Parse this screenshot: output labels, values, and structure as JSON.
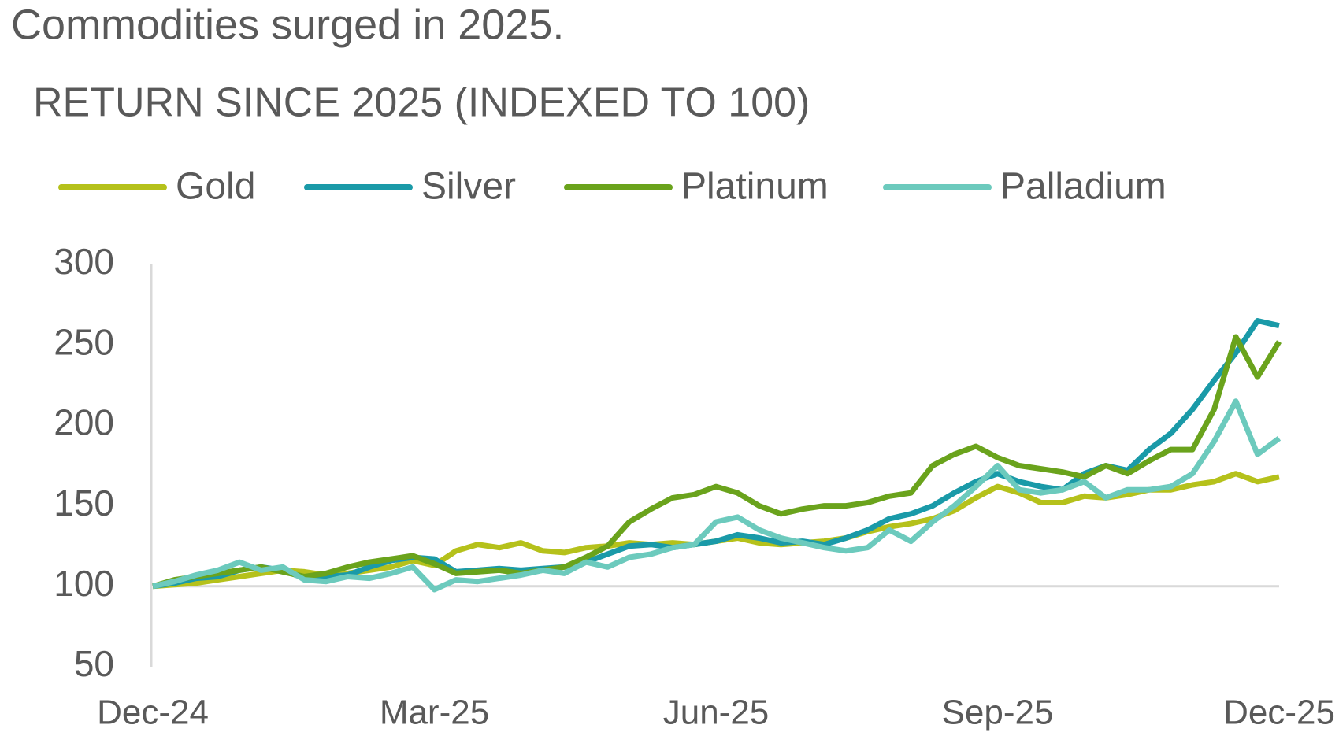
{
  "chart_data": {
    "type": "line",
    "title": "Commodities surged in 2025.",
    "subtitle": "RETURN SINCE 2025 (INDEXED TO 100)",
    "categories": [
      "Dec-24",
      null,
      null,
      null,
      null,
      null,
      null,
      null,
      null,
      null,
      null,
      null,
      null,
      "Mar-25",
      null,
      null,
      null,
      null,
      null,
      null,
      null,
      null,
      null,
      null,
      null,
      null,
      "Jun-25",
      null,
      null,
      null,
      null,
      null,
      null,
      null,
      null,
      null,
      null,
      null,
      null,
      "Sep-25",
      null,
      null,
      null,
      null,
      null,
      null,
      null,
      null,
      null,
      null,
      null,
      null,
      "Dec-25"
    ],
    "series": [
      {
        "name": "Gold",
        "color": "#b5c11b",
        "values": [
          100,
          101,
          102,
          104,
          106,
          108,
          110,
          109,
          107,
          108,
          110,
          112,
          116,
          113,
          122,
          126,
          124,
          127,
          122,
          121,
          124,
          125,
          127,
          126,
          127,
          126,
          128,
          130,
          127,
          126,
          127,
          128,
          130,
          134,
          137,
          139,
          142,
          147,
          155,
          162,
          158,
          152,
          152,
          156,
          155,
          157,
          160,
          160,
          163,
          165,
          170,
          165,
          168
        ]
      },
      {
        "name": "Silver",
        "color": "#1a9aa8",
        "values": [
          100,
          102,
          105,
          106,
          110,
          112,
          110,
          105,
          106,
          107,
          112,
          116,
          118,
          117,
          109,
          110,
          111,
          110,
          111,
          112,
          115,
          120,
          125,
          126,
          124,
          126,
          128,
          132,
          130,
          127,
          128,
          126,
          130,
          135,
          142,
          145,
          150,
          158,
          165,
          170,
          165,
          162,
          160,
          170,
          175,
          172,
          185,
          195,
          210,
          228,
          245,
          265,
          262
        ]
      },
      {
        "name": "Platinum",
        "color": "#6aa31c",
        "values": [
          100,
          104,
          106,
          108,
          110,
          112,
          109,
          106,
          108,
          112,
          115,
          117,
          119,
          114,
          108,
          109,
          110,
          108,
          110,
          112,
          118,
          125,
          140,
          148,
          155,
          157,
          162,
          158,
          150,
          145,
          148,
          150,
          150,
          152,
          156,
          158,
          175,
          182,
          187,
          180,
          175,
          173,
          171,
          168,
          175,
          170,
          178,
          185,
          185,
          210,
          255,
          230,
          252
        ]
      },
      {
        "name": "Palladium",
        "color": "#6ccabd",
        "values": [
          100,
          103,
          107,
          110,
          115,
          110,
          112,
          104,
          103,
          106,
          105,
          108,
          112,
          98,
          104,
          103,
          105,
          107,
          110,
          108,
          115,
          112,
          118,
          120,
          124,
          126,
          140,
          143,
          135,
          130,
          127,
          124,
          122,
          124,
          135,
          128,
          140,
          150,
          162,
          175,
          160,
          158,
          160,
          165,
          155,
          160,
          160,
          162,
          170,
          190,
          215,
          182,
          192
        ]
      }
    ],
    "ylim": [
      50,
      300
    ],
    "yticks": [
      50,
      100,
      150,
      200,
      250,
      300
    ],
    "baseline": 100,
    "grid": false,
    "legend": "top"
  }
}
